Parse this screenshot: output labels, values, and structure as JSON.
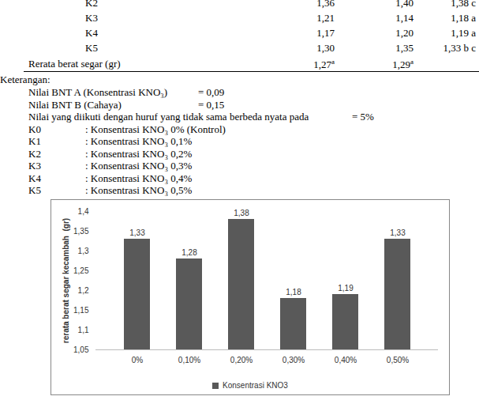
{
  "table": {
    "rows": [
      [
        "K2",
        "1,36",
        "1,40",
        "1,38 c"
      ],
      [
        "K3",
        "1,21",
        "1,14",
        "1,18 a"
      ],
      [
        "K4",
        "1,17",
        "1,20",
        "1,19 a"
      ],
      [
        "K5",
        "1,30",
        "1,35",
        "1,33 b c"
      ]
    ],
    "footer": {
      "label": "Rerata berat segar (gr)",
      "cells": [
        {
          "text": "1,27",
          "sup": "a"
        },
        {
          "text": "1,29",
          "sup": "a"
        }
      ]
    }
  },
  "notes": {
    "heading": "Keterangan:",
    "items": [
      {
        "label": "Nilai BNT A (Konsentrasi KNO₃)",
        "value": "= 0,09"
      },
      {
        "label": "Nilai BNT B (Cahaya)",
        "value": "= 0,15"
      },
      {
        "label": "Nilai yang diikuti dengan huruf yang tidak sama berbeda nyata pada",
        "value": "= 5%"
      },
      {
        "label": "K0",
        "value": ": Konsentrasi KNO₃ 0% (Kontrol)"
      },
      {
        "label": "K1",
        "value": ": Konsentrasi KNO₃ 0,1%"
      },
      {
        "label": "K2",
        "value": ": Konsentrasi KNO₃ 0,2%"
      },
      {
        "label": "K3",
        "value": ": Konsentrasi KNO₃ 0,3%"
      },
      {
        "label": "K4",
        "value": ": Konsentrasi KNO₃ 0,4%"
      },
      {
        "label": "K5",
        "value": ": Konsentrasi KNO₃ 0,5%"
      }
    ]
  },
  "chart_data": {
    "type": "bar",
    "y_label": "rerata berat segar kecambah  (gr)",
    "categories": [
      "0%",
      "0,10%",
      "0,20%",
      "0,30%",
      "0,40%",
      "0,50%"
    ],
    "series": [
      {
        "name": "Konsentrasi KNO3",
        "color": "#595959",
        "values": [
          1.33,
          1.28,
          1.38,
          1.18,
          1.19,
          1.33
        ],
        "value_labels": [
          "1,33",
          "1,28",
          "1,38",
          "1,18",
          "1,19",
          "1,33"
        ]
      }
    ],
    "ylim": [
      1.05,
      1.4
    ],
    "yticks": [
      {
        "value": 1.05,
        "label": "1,05"
      },
      {
        "value": 1.1,
        "label": "1,1"
      },
      {
        "value": 1.15,
        "label": "1,15"
      },
      {
        "value": 1.2,
        "label": "1,2"
      },
      {
        "value": 1.25,
        "label": "1,25"
      },
      {
        "value": 1.3,
        "label": "1,3"
      },
      {
        "value": 1.35,
        "label": "1,35"
      },
      {
        "value": 1.4,
        "label": "1,4"
      }
    ],
    "data_labels": true,
    "grid": false,
    "legend": "bottom"
  }
}
